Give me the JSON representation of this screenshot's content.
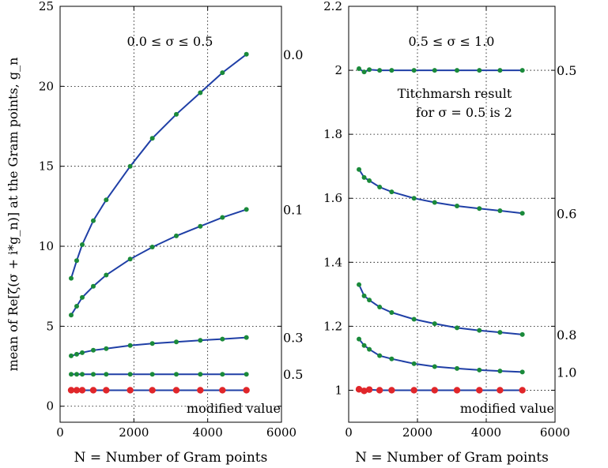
{
  "chart_data": [
    {
      "type": "line",
      "ylabel": "mean of Re[ζ(σ + i*g_n)] at the Gram points, g_n",
      "xlabel": "N = Number of Gram points",
      "xlim": [
        0,
        6000
      ],
      "ylim": [
        -1,
        25
      ],
      "xticks": [
        "0",
        "2000",
        "4000",
        "6000"
      ],
      "yticks": [
        "0",
        "5",
        "10",
        "15",
        "20",
        "25"
      ],
      "grid": true,
      "annotations": [
        "0.0  ≤ σ ≤ 0.5",
        "modified value"
      ],
      "line_color": "#1f3fa6",
      "marker_color": "#1a8a3a",
      "modified_marker_color": "#e0262a",
      "x": [
        300,
        450,
        600,
        900,
        1250,
        1900,
        2500,
        3150,
        3800,
        4400,
        5050
      ],
      "series": [
        {
          "label": "0.0",
          "values": [
            8.0,
            9.1,
            10.1,
            11.6,
            12.9,
            15.0,
            16.75,
            18.25,
            19.6,
            20.85,
            22.0
          ]
        },
        {
          "label": "0.1",
          "values": [
            5.7,
            6.25,
            6.8,
            7.5,
            8.2,
            9.2,
            9.95,
            10.65,
            11.25,
            11.8,
            12.3
          ]
        },
        {
          "label": "0.3",
          "values": [
            3.15,
            3.25,
            3.35,
            3.5,
            3.6,
            3.8,
            3.92,
            4.02,
            4.12,
            4.2,
            4.3
          ]
        },
        {
          "label": "0.5",
          "values": [
            2.0,
            2.0,
            2.0,
            2.0,
            2.0,
            2.0,
            2.0,
            2.0,
            2.0,
            2.0,
            2.0
          ]
        },
        {
          "label": "",
          "modified": true,
          "values": [
            1.0,
            1.0,
            1.0,
            1.0,
            1.0,
            1.0,
            1.0,
            1.0,
            1.0,
            1.0,
            1.0
          ]
        }
      ]
    },
    {
      "type": "line",
      "ylabel": "",
      "xlabel": "N = Number of Gram points",
      "xlim": [
        0,
        6000
      ],
      "ylim": [
        0.9,
        2.2
      ],
      "xticks": [
        "0",
        "2000",
        "4000",
        "6000"
      ],
      "yticks": [
        "1",
        "1.2",
        "1.4",
        "1.6",
        "1.8",
        "2",
        "2.2"
      ],
      "grid": true,
      "annotations": [
        "0.5  ≤ σ ≤ 1.0",
        "Titchmarsh result",
        "for σ = 0.5 is 2",
        "modified value"
      ],
      "line_color": "#1f3fa6",
      "marker_color": "#1a8a3a",
      "modified_marker_color": "#e0262a",
      "x": [
        300,
        450,
        600,
        900,
        1250,
        1900,
        2500,
        3150,
        3800,
        4400,
        5050
      ],
      "series": [
        {
          "label": "0.5",
          "values": [
            2.005,
            1.995,
            2.002,
            2.0,
            2.0,
            2.0,
            2.0,
            2.0,
            2.0,
            2.0,
            2.0
          ]
        },
        {
          "label": "0.6",
          "values": [
            1.69,
            1.665,
            1.655,
            1.635,
            1.62,
            1.6,
            1.587,
            1.576,
            1.568,
            1.561,
            1.553
          ]
        },
        {
          "label": "0.8",
          "values": [
            1.33,
            1.295,
            1.282,
            1.26,
            1.243,
            1.222,
            1.208,
            1.195,
            1.187,
            1.181,
            1.174
          ]
        },
        {
          "label": "1.0",
          "values": [
            1.16,
            1.14,
            1.128,
            1.108,
            1.098,
            1.083,
            1.074,
            1.068,
            1.063,
            1.06,
            1.057
          ]
        },
        {
          "label": "",
          "modified": true,
          "values": [
            1.003,
            0.998,
            1.002,
            1.0,
            1.0,
            1.0,
            1.0,
            1.0,
            1.0,
            1.0,
            1.0
          ]
        }
      ]
    }
  ]
}
